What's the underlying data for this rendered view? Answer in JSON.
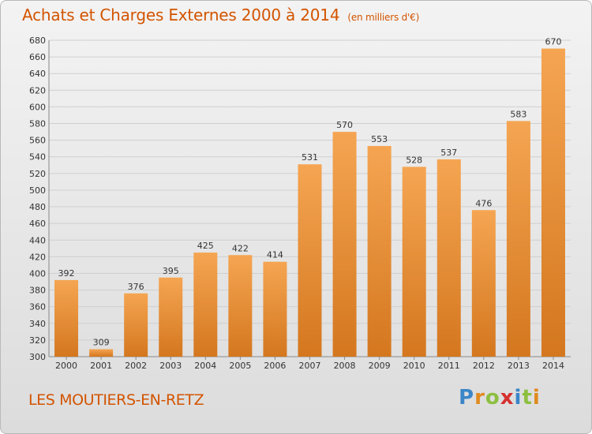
{
  "header": {
    "title": "Achats et Charges Externes 2000 à 2014",
    "unit": "(en milliers d'€)"
  },
  "footer": {
    "commune": "LES MOUTIERS-EN-RETZ",
    "logo": "Proxiti"
  },
  "colors": {
    "title": "#d35400",
    "bar_top": "#f5a552",
    "bar_bottom": "#d4771f",
    "grid": "#cfcfcf",
    "axis_text": "#333333"
  },
  "chart_data": {
    "type": "bar",
    "title": "Achats et Charges Externes 2000 à 2014",
    "subtitle": "(en milliers d'€)",
    "xlabel": "",
    "ylabel": "",
    "categories": [
      "2000",
      "2001",
      "2002",
      "2003",
      "2004",
      "2005",
      "2006",
      "2007",
      "2008",
      "2009",
      "2010",
      "2011",
      "2012",
      "2013",
      "2014"
    ],
    "values": [
      392,
      309,
      376,
      395,
      425,
      422,
      414,
      531,
      570,
      553,
      528,
      537,
      476,
      583,
      670
    ],
    "ylim": [
      300,
      680
    ],
    "yticks": [
      300,
      320,
      340,
      360,
      380,
      400,
      420,
      440,
      460,
      480,
      500,
      520,
      540,
      560,
      580,
      600,
      620,
      640,
      660,
      680
    ],
    "grid": true,
    "data_labels": true
  }
}
